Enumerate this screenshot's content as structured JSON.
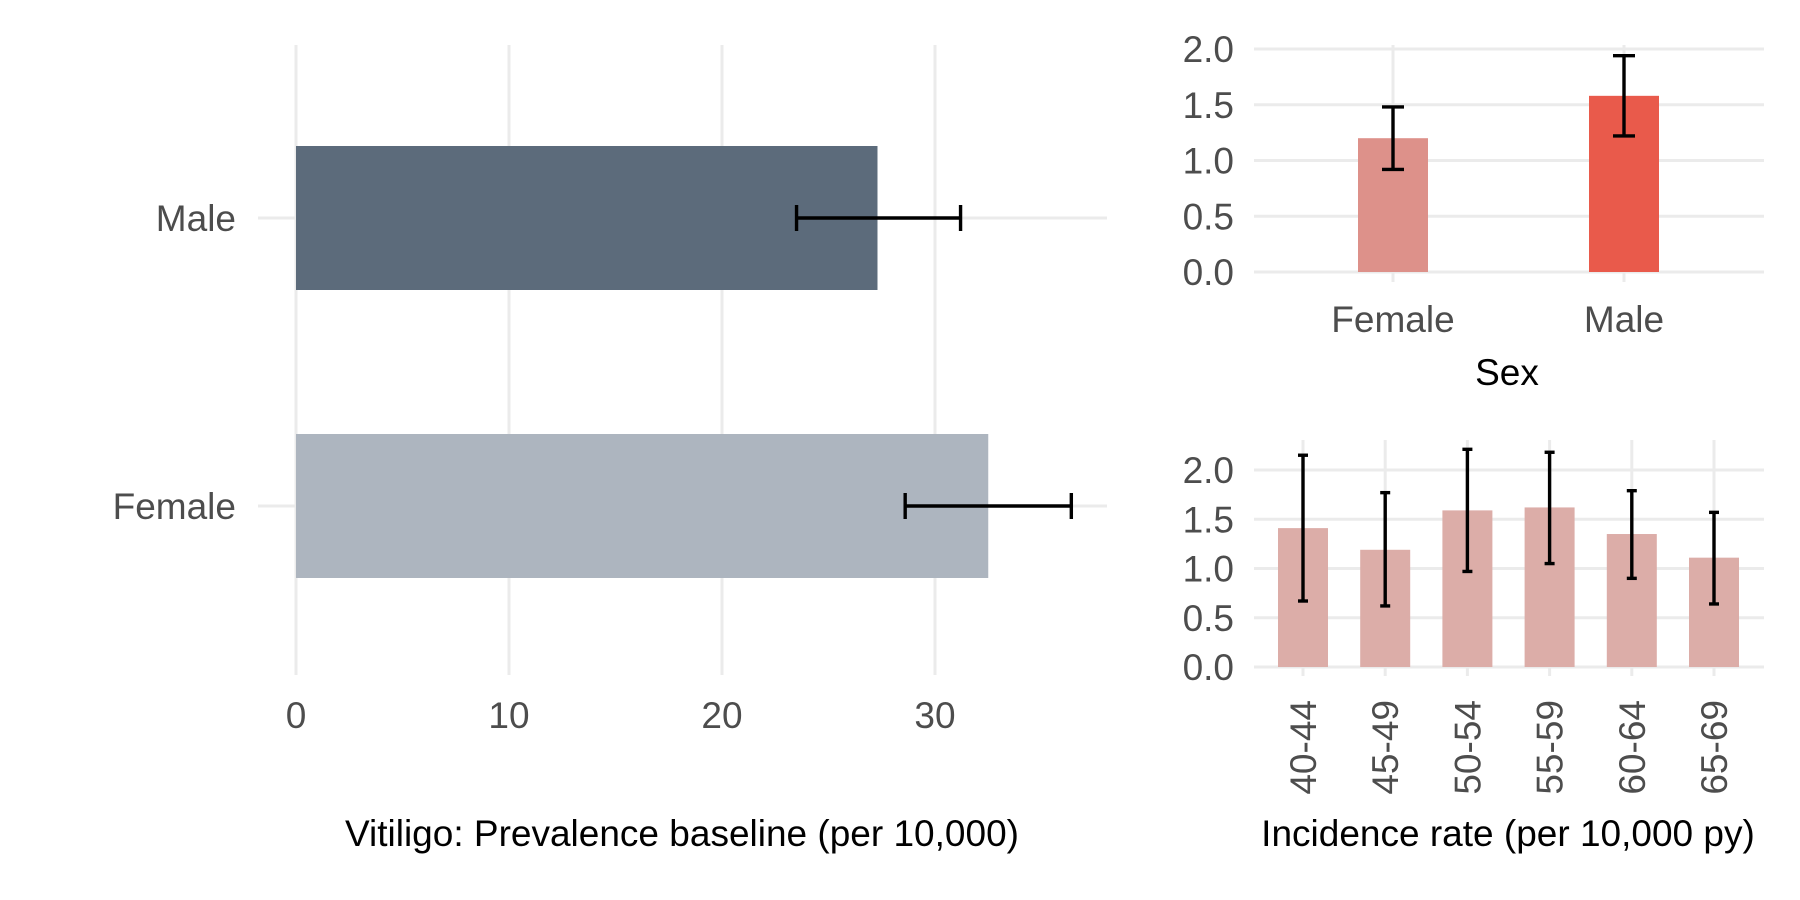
{
  "chart_data": [
    {
      "type": "bar",
      "orientation": "horizontal",
      "xlabel": "Vitiligo: Prevalence baseline (per 10,000)",
      "ylabel": "",
      "categories": [
        "Male",
        "Female"
      ],
      "values": [
        27.3,
        32.5
      ],
      "error_low": [
        23.5,
        28.6
      ],
      "error_high": [
        31.2,
        36.4
      ],
      "colors": [
        "#5c6b7b",
        "#adb5bf"
      ],
      "xlim": [
        0,
        38
      ],
      "xticks": [
        "0",
        "10",
        "20",
        "30"
      ],
      "xtick_values": [
        0,
        10,
        20,
        30
      ],
      "grid": true,
      "legend": "none"
    },
    {
      "type": "bar",
      "xlabel": "Sex",
      "ylabel": "",
      "categories": [
        "Female",
        "Male"
      ],
      "values": [
        1.2,
        1.58
      ],
      "error_low": [
        0.92,
        1.22
      ],
      "error_high": [
        1.48,
        1.94
      ],
      "colors": [
        "#dd918a",
        "#e95a4b"
      ],
      "ylim": [
        0,
        2.1
      ],
      "yticks": [
        "0.0",
        "0.5",
        "1.0",
        "1.5",
        "2.0"
      ],
      "ytick_values": [
        0,
        0.5,
        1.0,
        1.5,
        2.0
      ],
      "grid": true,
      "legend": "none"
    },
    {
      "type": "bar",
      "xlabel": "Incidence rate (per 10,000 py)",
      "ylabel": "",
      "categories": [
        "40-44",
        "45-49",
        "50-54",
        "55-59",
        "60-64",
        "65-69"
      ],
      "values": [
        1.41,
        1.19,
        1.59,
        1.62,
        1.35,
        1.11
      ],
      "error_low": [
        0.67,
        0.62,
        0.97,
        1.05,
        0.9,
        0.64
      ],
      "error_high": [
        2.15,
        1.77,
        2.21,
        2.18,
        1.79,
        1.57
      ],
      "colors": [
        "#dcada8"
      ],
      "ylim": [
        0,
        2.3
      ],
      "yticks": [
        "0.0",
        "0.5",
        "1.0",
        "1.5",
        "2.0"
      ],
      "ytick_values": [
        0,
        0.5,
        1.0,
        1.5,
        2.0
      ],
      "grid": true,
      "legend": "none"
    }
  ]
}
